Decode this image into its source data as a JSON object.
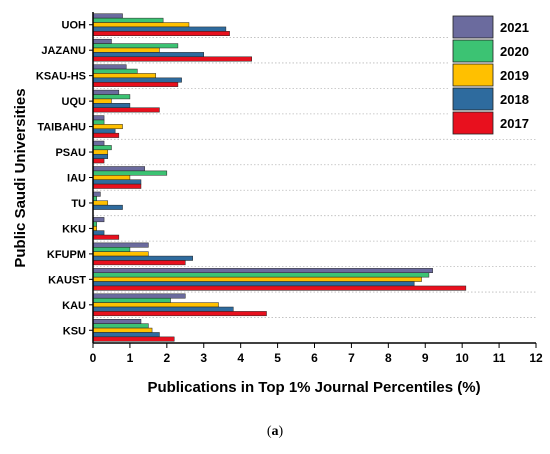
{
  "chart_data": {
    "type": "bar",
    "orientation": "horizontal",
    "xlabel": "Publications in Top 1% Journal Percentiles (%)",
    "ylabel": "Public Saudi Universities",
    "xlim": [
      0,
      12
    ],
    "xticks": [
      "0",
      "1",
      "2",
      "3",
      "4",
      "5",
      "6",
      "7",
      "8",
      "9",
      "10",
      "11",
      "12"
    ],
    "categories": [
      "UOH",
      "JAZANU",
      "KSAU-HS",
      "UQU",
      "TAIBAHU",
      "PSAU",
      "IAU",
      "TU",
      "KKU",
      "KFUPM",
      "KAUST",
      "KAU",
      "KSU"
    ],
    "series": [
      {
        "name": "2021",
        "color": "#6B6B9E",
        "values": [
          0.8,
          0.5,
          0.9,
          0.7,
          0.3,
          0.3,
          1.4,
          0.2,
          0.3,
          1.5,
          9.2,
          2.5,
          1.3
        ]
      },
      {
        "name": "2020",
        "color": "#3CC373",
        "values": [
          1.9,
          2.3,
          1.2,
          1.0,
          0.3,
          0.5,
          2.0,
          0.1,
          0.1,
          1.0,
          9.1,
          2.1,
          1.5
        ]
      },
      {
        "name": "2019",
        "color": "#FFC000",
        "values": [
          2.6,
          1.8,
          1.7,
          0.5,
          0.8,
          0.4,
          1.0,
          0.4,
          0.1,
          1.5,
          8.9,
          3.4,
          1.6
        ]
      },
      {
        "name": "2018",
        "color": "#2E6B9E",
        "values": [
          3.6,
          3.0,
          2.4,
          1.0,
          0.6,
          0.4,
          1.3,
          0.8,
          0.3,
          2.7,
          8.7,
          3.8,
          1.8
        ]
      },
      {
        "name": "2017",
        "color": "#E8101E",
        "values": [
          3.7,
          4.3,
          2.3,
          1.8,
          0.7,
          0.3,
          1.3,
          0.0,
          0.7,
          2.5,
          10.1,
          4.7,
          2.2
        ]
      }
    ],
    "legend": {
      "placement": "top-right",
      "order": [
        "2021",
        "2020",
        "2019",
        "2018",
        "2017"
      ]
    },
    "grid": {
      "horizontal_dotted": true
    }
  },
  "caption": {
    "prefix": "(",
    "letter": "a",
    "suffix": ")"
  }
}
